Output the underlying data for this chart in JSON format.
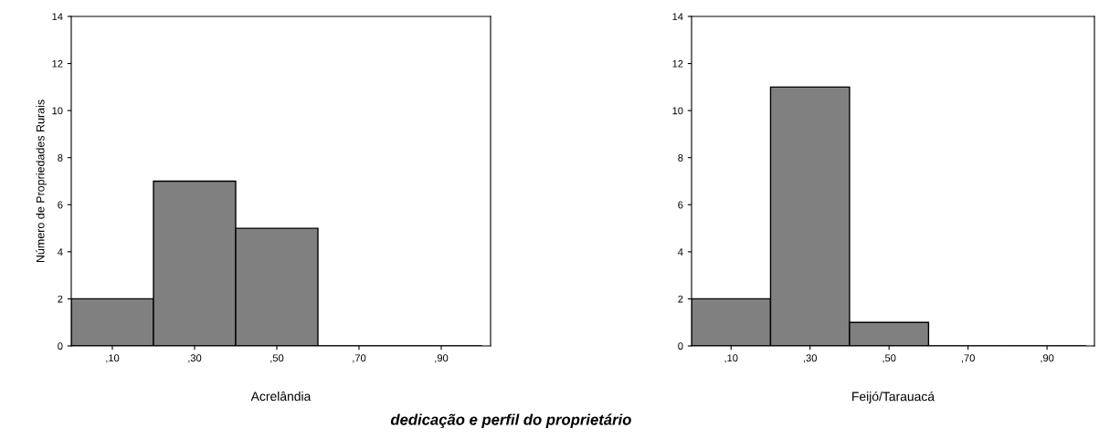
{
  "chart_data": [
    {
      "type": "bar",
      "xlabel": "Acrelândia",
      "ylabel": "Número de Propriedades Rurais",
      "categories": [
        ",10",
        ",30",
        ",50",
        ",70",
        ",90"
      ],
      "values": [
        2,
        7,
        5,
        0,
        0
      ],
      "color": "#808080",
      "ylim": [
        0,
        14
      ],
      "yticks": [
        0,
        2,
        4,
        6,
        8,
        10,
        12,
        14
      ],
      "grid": false,
      "annotations": [
        "dedicação e perfil do proprietário"
      ]
    },
    {
      "type": "bar",
      "xlabel": "Feijó/Tarauacá",
      "categories": [
        ",10",
        ",30",
        ",50",
        ",70",
        ",90"
      ],
      "values": [
        2,
        11,
        1,
        0,
        0
      ],
      "color": "#808080",
      "ylim": [
        0,
        14
      ],
      "yticks": [
        0,
        2,
        4,
        6,
        8,
        10,
        12,
        14
      ],
      "grid": false
    }
  ]
}
